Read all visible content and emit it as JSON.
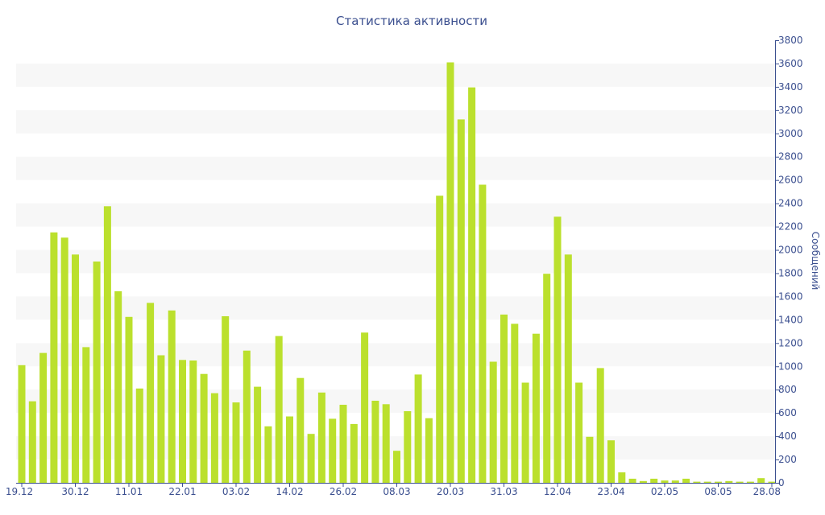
{
  "colors": {
    "bar": "#bbe02d",
    "band": "#f7f7f7",
    "axis": "#3b4f8f",
    "text": "#3b4f8f"
  },
  "chart_data": {
    "type": "bar",
    "title": "Статистика активности",
    "xlabel": "",
    "ylabel": "Сообщений",
    "y_axis_side": "right",
    "ylim": [
      0,
      3800
    ],
    "yticks": [
      0,
      200,
      400,
      600,
      800,
      1000,
      1200,
      1400,
      1600,
      1800,
      2000,
      2200,
      2400,
      2600,
      2800,
      3000,
      3200,
      3400,
      3600,
      3800
    ],
    "grid": "alternating horizontal bands",
    "legend": "none",
    "x_tick_labels": [
      {
        "index": 0,
        "label": "19.12"
      },
      {
        "index": 5,
        "label": "30.12"
      },
      {
        "index": 10,
        "label": "11.01"
      },
      {
        "index": 15,
        "label": "22.01"
      },
      {
        "index": 20,
        "label": "03.02"
      },
      {
        "index": 25,
        "label": "14.02"
      },
      {
        "index": 30,
        "label": "26.02"
      },
      {
        "index": 35,
        "label": "08.03"
      },
      {
        "index": 40,
        "label": "20.03"
      },
      {
        "index": 45,
        "label": "31.03"
      },
      {
        "index": 50,
        "label": "12.04"
      },
      {
        "index": 55,
        "label": "23.04"
      },
      {
        "index": 60,
        "label": "02.05"
      },
      {
        "index": 65,
        "label": "08.05"
      },
      {
        "index": 70,
        "label": "28.08"
      }
    ],
    "values": [
      1010,
      700,
      1115,
      2150,
      2105,
      1960,
      1165,
      1900,
      2375,
      1645,
      1425,
      810,
      1545,
      1095,
      1480,
      1055,
      1050,
      935,
      770,
      1430,
      690,
      1135,
      825,
      485,
      1260,
      570,
      900,
      420,
      775,
      550,
      670,
      505,
      1290,
      705,
      675,
      275,
      615,
      930,
      555,
      2465,
      3610,
      3120,
      3395,
      2560,
      1040,
      1445,
      1365,
      860,
      1280,
      1795,
      2285,
      1960,
      860,
      395,
      985,
      365,
      90,
      35,
      15,
      35,
      20,
      20,
      35,
      10,
      10,
      10,
      15,
      10,
      10,
      40,
      10
    ]
  }
}
